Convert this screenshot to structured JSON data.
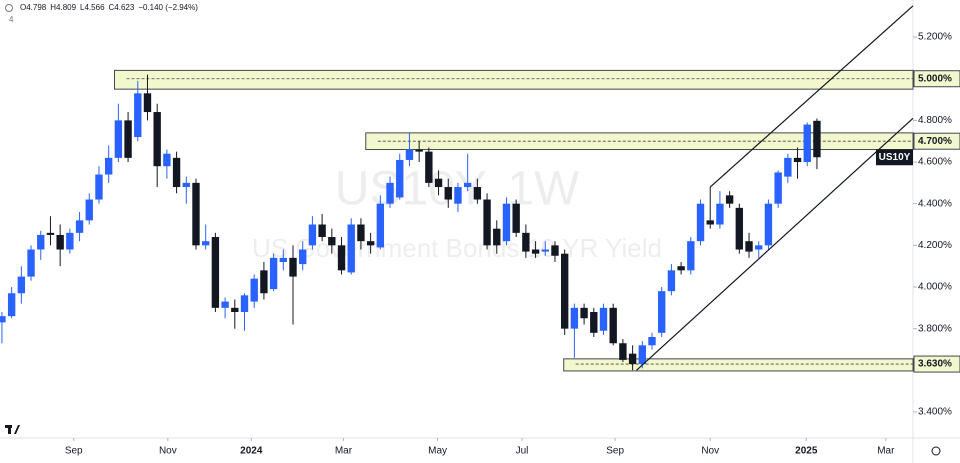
{
  "chart_data": {
    "type": "candlestick",
    "header": [
      "O4.798",
      "H4.809",
      "L4.566",
      "C4.623",
      "−0.140 (−2.94%)"
    ],
    "header_sub": "4",
    "watermark_title": "US10Y, 1W",
    "watermark_subtitle": "US Government Bonds 10 YR Yield",
    "symbol": "US10Y",
    "open": [
      3.83,
      3.86,
      3.97,
      4.05,
      4.18,
      4.26,
      4.25,
      4.18,
      4.26,
      4.32,
      4.42,
      4.54,
      4.62,
      4.8,
      4.72,
      4.93,
      4.84,
      4.58,
      4.62,
      4.48,
      4.5,
      4.2,
      4.24,
      3.9,
      3.9,
      3.88,
      3.93,
      4.08,
      3.99,
      4.12,
      4.14,
      4.11,
      4.2,
      4.3,
      4.24,
      4.2,
      4.07,
      4.3,
      4.22,
      4.19,
      4.4,
      4.43,
      4.61,
      4.66,
      4.65,
      4.52,
      4.48,
      4.4,
      4.48,
      4.48,
      4.42,
      4.28,
      4.22,
      4.4,
      4.26,
      4.18,
      4.17,
      4.2,
      4.16,
      3.8,
      3.9,
      3.88,
      3.79,
      3.9,
      3.73,
      3.68,
      3.63,
      3.72,
      3.78,
      3.98,
      4.1,
      4.08,
      4.22,
      4.32,
      4.3,
      4.44,
      4.38,
      4.22,
      4.18,
      4.2,
      4.4,
      4.53,
      4.62,
      4.6,
      4.798
    ],
    "high": [
      3.88,
      4.0,
      4.1,
      4.2,
      4.27,
      4.34,
      4.3,
      4.28,
      4.36,
      4.45,
      4.58,
      4.68,
      4.88,
      4.84,
      4.99,
      5.02,
      4.88,
      4.66,
      4.65,
      4.53,
      4.52,
      4.3,
      4.26,
      3.95,
      3.94,
      3.97,
      4.06,
      4.12,
      4.16,
      4.18,
      4.2,
      4.22,
      4.34,
      4.35,
      4.28,
      4.24,
      4.33,
      4.33,
      4.26,
      4.44,
      4.53,
      4.64,
      4.74,
      4.7,
      4.67,
      4.56,
      4.52,
      4.5,
      4.64,
      4.52,
      4.45,
      4.32,
      4.43,
      4.42,
      4.3,
      4.22,
      4.22,
      4.22,
      4.18,
      3.92,
      3.92,
      3.9,
      3.92,
      3.92,
      3.75,
      3.72,
      3.74,
      3.78,
      4.0,
      4.11,
      4.12,
      4.24,
      4.42,
      4.48,
      4.46,
      4.46,
      4.4,
      4.26,
      4.22,
      4.42,
      4.56,
      4.64,
      4.67,
      4.79,
      4.809
    ],
    "low": [
      3.73,
      3.85,
      3.92,
      4.03,
      4.13,
      4.2,
      4.1,
      4.16,
      4.22,
      4.3,
      4.4,
      4.5,
      4.6,
      4.6,
      4.7,
      4.8,
      4.48,
      4.52,
      4.45,
      4.4,
      4.18,
      4.18,
      3.88,
      3.85,
      3.8,
      3.79,
      3.9,
      3.94,
      3.98,
      4.08,
      3.82,
      4.08,
      4.18,
      4.22,
      4.16,
      4.06,
      4.06,
      4.18,
      4.16,
      4.18,
      4.38,
      4.42,
      4.58,
      4.6,
      4.48,
      4.44,
      4.38,
      4.36,
      4.46,
      4.4,
      4.18,
      4.16,
      4.2,
      4.24,
      4.14,
      4.14,
      4.15,
      4.12,
      3.77,
      3.66,
      3.82,
      3.76,
      3.77,
      3.72,
      3.64,
      3.6,
      3.61,
      3.7,
      3.76,
      3.96,
      4.06,
      4.06,
      4.2,
      4.28,
      4.28,
      4.38,
      4.16,
      4.14,
      4.14,
      4.18,
      4.38,
      4.5,
      4.52,
      4.58,
      4.566
    ],
    "close": [
      3.86,
      3.97,
      4.05,
      4.18,
      4.25,
      4.25,
      4.18,
      4.26,
      4.32,
      4.42,
      4.54,
      4.62,
      4.8,
      4.62,
      4.93,
      4.84,
      4.58,
      4.64,
      4.48,
      4.5,
      4.2,
      4.22,
      3.9,
      3.93,
      3.88,
      3.96,
      4.04,
      3.97,
      4.14,
      4.14,
      4.05,
      4.18,
      4.3,
      4.24,
      4.2,
      4.08,
      4.3,
      4.22,
      4.2,
      4.4,
      4.5,
      4.61,
      4.66,
      4.65,
      4.5,
      4.48,
      4.42,
      4.48,
      4.5,
      4.42,
      4.2,
      4.2,
      4.4,
      4.26,
      4.17,
      4.16,
      4.18,
      4.15,
      3.8,
      3.9,
      3.85,
      3.78,
      3.9,
      3.73,
      3.65,
      3.63,
      3.72,
      3.76,
      3.98,
      4.08,
      4.08,
      4.22,
      4.4,
      4.3,
      4.4,
      4.4,
      4.18,
      4.17,
      4.2,
      4.4,
      4.55,
      4.62,
      4.6,
      4.78,
      4.623
    ],
    "up_color": "#2962ff",
    "down_color": "#131722",
    "xlim": [
      -0.2,
      93.9
    ],
    "xticks": [
      {
        "value": 7.4,
        "label": "Sep"
      },
      {
        "value": 17.1,
        "label": "Nov"
      },
      {
        "value": 25.7,
        "label": "2024"
      },
      {
        "value": 35.2,
        "label": "Mar"
      },
      {
        "value": 44.9,
        "label": "May"
      },
      {
        "value": 53.6,
        "label": "Jul"
      },
      {
        "value": 63.2,
        "label": "Sep"
      },
      {
        "value": 73.0,
        "label": "Nov"
      },
      {
        "value": 82.9,
        "label": "2025"
      },
      {
        "value": 91.1,
        "label": "Mar"
      }
    ],
    "ylim": [
      3.275,
      5.378
    ],
    "yticks": [
      {
        "value": 5.2,
        "label": "5.200%"
      },
      {
        "value": 4.8,
        "label": "4.800%"
      },
      {
        "value": 4.6,
        "label": "4.600%"
      },
      {
        "value": 4.4,
        "label": "4.400%"
      },
      {
        "value": 4.2,
        "label": "4.200%"
      },
      {
        "value": 4.0,
        "label": "4.000%"
      },
      {
        "value": 3.8,
        "label": "3.800%"
      },
      {
        "value": 3.4,
        "label": "3.400%"
      }
    ],
    "zones": [
      {
        "start": 11.6,
        "top": 5.04,
        "bottom": 4.95,
        "level": {
          "value": 5.0,
          "label": "5.000%"
        }
      },
      {
        "start": 37.5,
        "top": 4.74,
        "bottom": 4.66,
        "level": {
          "value": 4.7,
          "label": "4.700%"
        }
      },
      {
        "start": 57.9,
        "top": 3.655,
        "bottom": 3.597,
        "level": {
          "value": 3.63,
          "label": "3.630%"
        }
      }
    ],
    "trendlines": [
      {
        "x": [
          73.0,
          93.9
        ],
        "y": [
          4.48,
          5.35
        ]
      },
      {
        "x": [
          65.4,
          93.9
        ],
        "y": [
          3.6,
          4.81
        ]
      }
    ]
  }
}
